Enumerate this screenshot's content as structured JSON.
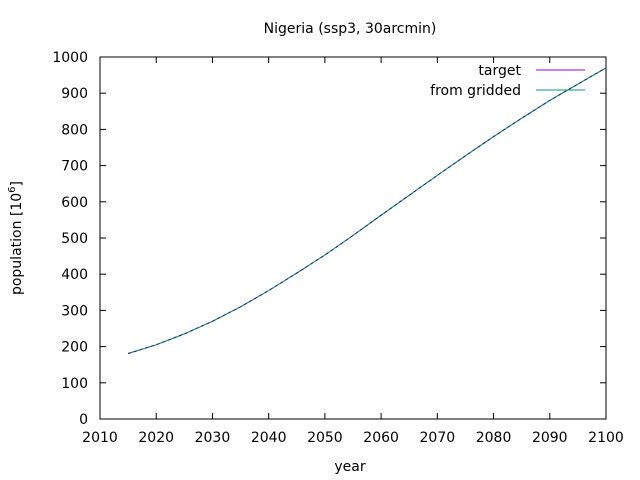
{
  "chart_data": {
    "type": "line",
    "title": "Nigeria (ssp3, 30arcmin)",
    "xlabel": "year",
    "ylabel": "population [10",
    "ylabel_sup": "6",
    "ylabel_close": "]",
    "xlim": [
      2010,
      2100
    ],
    "ylim": [
      0,
      1000
    ],
    "xticks": [
      "2010",
      "2020",
      "2030",
      "2040",
      "2050",
      "2060",
      "2070",
      "2080",
      "2090",
      "2100"
    ],
    "yticks": [
      "0",
      "100",
      "200",
      "300",
      "400",
      "500",
      "600",
      "700",
      "800",
      "900",
      "1000"
    ],
    "grid": false,
    "legend_position": "top-right",
    "series": [
      {
        "name": "target",
        "color": "#9400d3",
        "x": [
          2015,
          2020,
          2025,
          2030,
          2035,
          2040,
          2045,
          2050,
          2055,
          2060,
          2065,
          2070,
          2075,
          2080,
          2085,
          2090,
          2095,
          2100
        ],
        "values": [
          181,
          205,
          235,
          270,
          310,
          355,
          403,
          453,
          507,
          563,
          618,
          673,
          727,
          780,
          831,
          880,
          925,
          970
        ]
      },
      {
        "name": "from gridded",
        "color": "#009e73",
        "x": [
          2015,
          2020,
          2025,
          2030,
          2035,
          2040,
          2045,
          2050,
          2055,
          2060,
          2065,
          2070,
          2075,
          2080,
          2085,
          2090,
          2095,
          2100
        ],
        "values": [
          181,
          205,
          235,
          270,
          310,
          355,
          403,
          453,
          507,
          563,
          618,
          673,
          727,
          780,
          831,
          880,
          925,
          970
        ]
      }
    ],
    "overlay_color": "#1f2a7a"
  }
}
